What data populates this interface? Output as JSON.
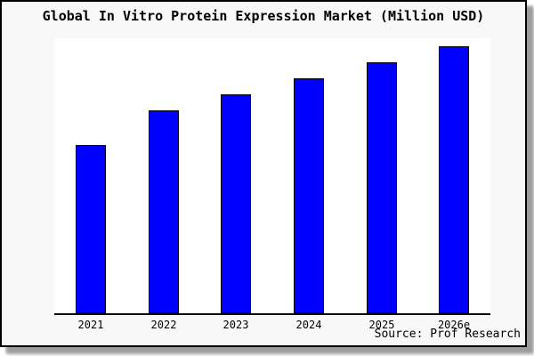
{
  "chart_data": {
    "type": "bar",
    "title": "Global In Vitro Protein Expression Market (Million USD)",
    "categories": [
      "2021",
      "2022",
      "2023",
      "2024",
      "2025",
      "2026e"
    ],
    "values": [
      63,
      76,
      82,
      88,
      94,
      100
    ],
    "value_note": "No y-axis, gridlines or data labels are visible; values are estimated relative bar heights as a percentage of the tallest bar (2026e = 100).",
    "xlabel": "",
    "ylabel": "",
    "legend": "none",
    "grid": false,
    "source": "Source: Prof Research"
  },
  "colors": {
    "page_bg": "#f8f8f8",
    "plot_bg": "#ffffff",
    "bar_fill": "#0000ff",
    "bar_border": "#000000",
    "frame_border": "#000000",
    "shadow": "#9c9c9c",
    "text": "#000000"
  }
}
